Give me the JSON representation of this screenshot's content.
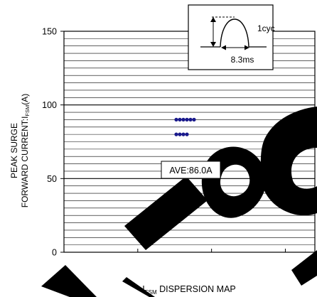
{
  "chart_data": {
    "type": "scatter",
    "title": "",
    "xlabel": {
      "main": "I",
      "sub": "FSM",
      "rest": " DISPERSION MAP"
    },
    "ylabel": {
      "line1": "PEAK SURGE",
      "line2_prefix": "FORWARD CURRENT:I",
      "line2_sub": "FSM",
      "line2_suffix": "(A)"
    },
    "ylim": [
      0,
      150
    ],
    "yticks": [
      0,
      50,
      100,
      150
    ],
    "y_grid_step": 5,
    "points": [
      {
        "x": 1,
        "y": 90
      },
      {
        "x": 2,
        "y": 90
      },
      {
        "x": 3,
        "y": 90
      },
      {
        "x": 4,
        "y": 90
      },
      {
        "x": 5,
        "y": 90
      },
      {
        "x": 6,
        "y": 90
      },
      {
        "x": 1,
        "y": 80
      },
      {
        "x": 2,
        "y": 80
      },
      {
        "x": 3,
        "y": 80
      },
      {
        "x": 4,
        "y": 80
      }
    ],
    "point_color": "#1a1a8c",
    "annotations": {
      "average": "AVE:86.0A",
      "cycle": "1cyc",
      "period": "8.3ms"
    },
    "watermark_color": "#000000"
  }
}
